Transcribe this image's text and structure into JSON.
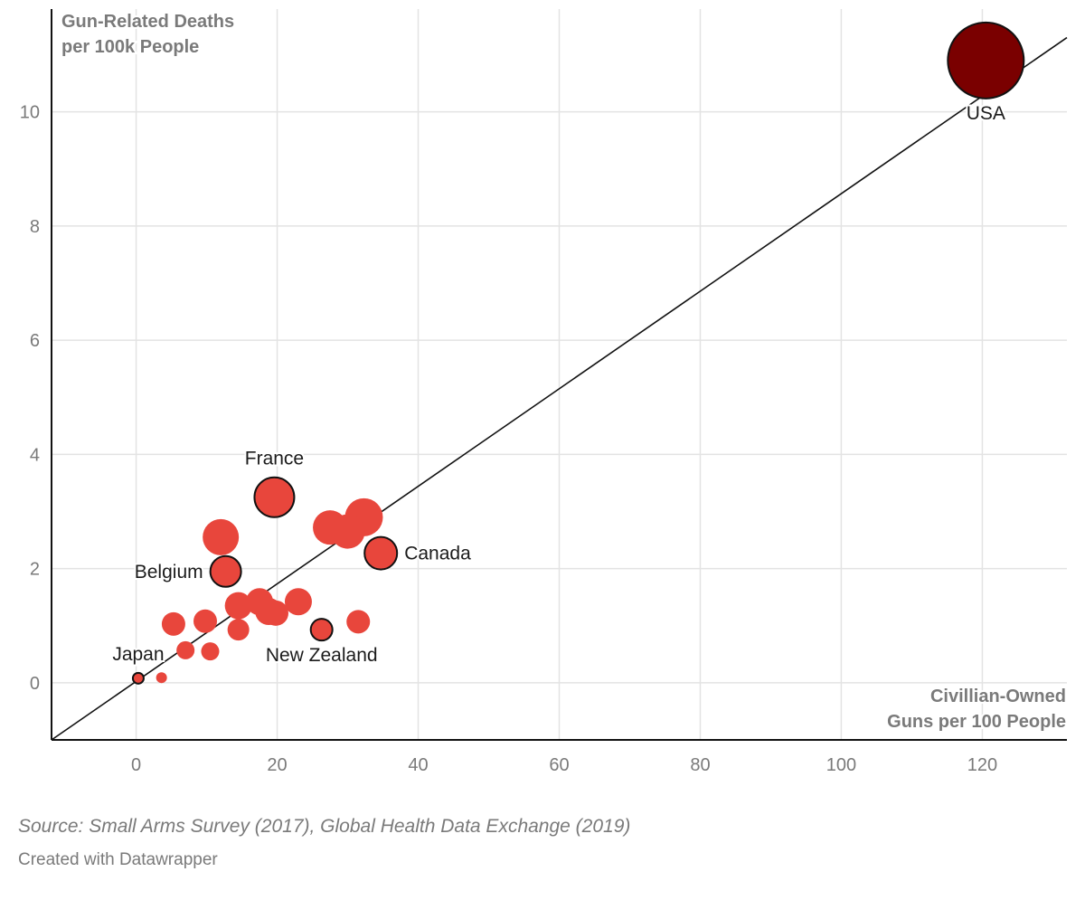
{
  "chart_data": {
    "type": "scatter",
    "ylabel": [
      "Gun-Related Deaths",
      "per 100k People"
    ],
    "xlabel": [
      "Civillian-Owned",
      "Guns per 100 People"
    ],
    "xlim": [
      -12,
      132
    ],
    "ylim": [
      -1,
      11.8
    ],
    "xticks": [
      0,
      20,
      40,
      60,
      80,
      100,
      120
    ],
    "yticks": [
      0,
      2,
      4,
      6,
      8,
      10
    ],
    "grid": true,
    "trendline": {
      "x": [
        -12,
        132
      ],
      "y": [
        -1.0,
        11.3
      ]
    },
    "colors": {
      "default": "#e8463c",
      "highlight": "#e8463c",
      "usa": "#7a0000",
      "outline": "#111111",
      "grid": "#e3e3e3",
      "axis": "#111111"
    },
    "points": [
      {
        "x": 120.5,
        "y": 10.9,
        "size": 42,
        "label": "USA",
        "color": "usa",
        "outline": true,
        "label_pos": "below"
      },
      {
        "x": 19.6,
        "y": 3.25,
        "size": 22,
        "label": "France",
        "color": "highlight",
        "outline": true,
        "label_pos": "above"
      },
      {
        "x": 12.7,
        "y": 1.95,
        "size": 17,
        "label": "Belgium",
        "color": "highlight",
        "outline": true,
        "label_pos": "left"
      },
      {
        "x": 34.7,
        "y": 2.27,
        "size": 18,
        "label": "Canada",
        "color": "highlight",
        "outline": true,
        "label_pos": "right"
      },
      {
        "x": 26.3,
        "y": 0.93,
        "size": 12,
        "label": "New Zealand",
        "color": "highlight",
        "outline": true,
        "label_pos": "below"
      },
      {
        "x": 0.3,
        "y": 0.08,
        "size": 6,
        "label": "Japan",
        "color": "highlight",
        "outline": true,
        "label_pos": "above-left"
      },
      {
        "x": 12.0,
        "y": 2.55,
        "size": 20,
        "color": "default"
      },
      {
        "x": 27.5,
        "y": 2.72,
        "size": 19,
        "color": "default"
      },
      {
        "x": 30.0,
        "y": 2.65,
        "size": 19,
        "color": "default"
      },
      {
        "x": 32.3,
        "y": 2.9,
        "size": 21,
        "color": "default"
      },
      {
        "x": 14.5,
        "y": 1.35,
        "size": 15,
        "color": "default"
      },
      {
        "x": 17.5,
        "y": 1.42,
        "size": 15,
        "color": "default"
      },
      {
        "x": 18.8,
        "y": 1.25,
        "size": 15,
        "color": "default"
      },
      {
        "x": 19.8,
        "y": 1.22,
        "size": 14,
        "color": "default"
      },
      {
        "x": 23.0,
        "y": 1.42,
        "size": 15,
        "color": "default"
      },
      {
        "x": 5.3,
        "y": 1.03,
        "size": 13,
        "color": "default"
      },
      {
        "x": 9.8,
        "y": 1.08,
        "size": 13,
        "color": "default"
      },
      {
        "x": 14.5,
        "y": 0.93,
        "size": 12,
        "color": "default"
      },
      {
        "x": 31.5,
        "y": 1.07,
        "size": 13,
        "color": "default"
      },
      {
        "x": 7.0,
        "y": 0.57,
        "size": 10,
        "color": "default"
      },
      {
        "x": 10.5,
        "y": 0.55,
        "size": 10,
        "color": "default"
      },
      {
        "x": 3.6,
        "y": 0.09,
        "size": 6,
        "color": "default"
      }
    ]
  },
  "footer": {
    "source": "Source: Small Arms Survey (2017), Global Health Data Exchange (2019)",
    "credit": "Created with Datawrapper"
  }
}
